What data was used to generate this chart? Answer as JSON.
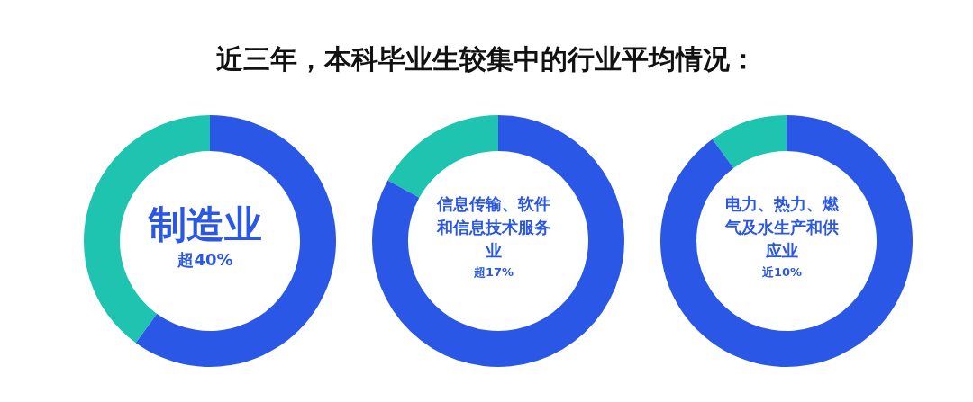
{
  "chart_data": [
    {
      "type": "donut",
      "title": "近三年，本科毕业生较集中的行业平均情况：",
      "categories": [
        "制造业",
        null
      ],
      "values": [
        40,
        60
      ],
      "colors": [
        "#1fc4b0",
        "#2b57e6"
      ],
      "value_labels": [
        "超40%",
        null
      ]
    },
    {
      "type": "donut",
      "categories": [
        "信息传输、软件和信息技术服务业",
        null
      ],
      "values": [
        17,
        83
      ],
      "colors": [
        "#1fc4b0",
        "#2b57e6"
      ],
      "value_labels": [
        "超17%",
        null
      ]
    },
    {
      "type": "donut",
      "categories": [
        "电力、热力、燃气及水生产和供应业",
        null
      ],
      "values": [
        10,
        90
      ],
      "colors": [
        "#1fc4b0",
        "#2b57e6"
      ],
      "value_labels": [
        "近10%",
        null
      ]
    }
  ]
}
